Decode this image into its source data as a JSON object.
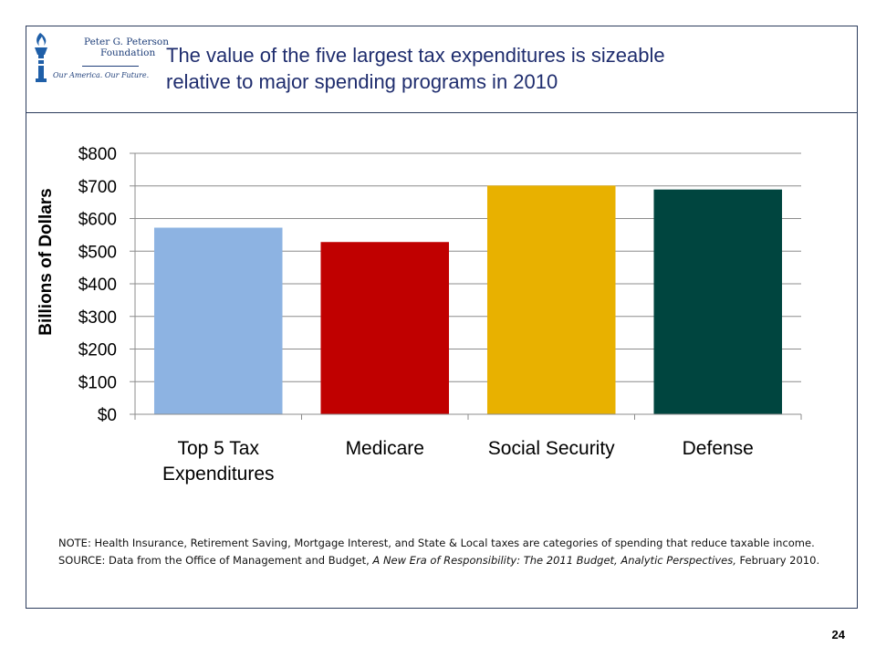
{
  "header": {
    "logo": {
      "org_line1": "Peter G. Peterson",
      "org_line2": "Foundation",
      "tagline": "Our America. Our Future."
    },
    "title_line1": "The value of the five largest tax expenditures is sizeable",
    "title_line2": "relative to major spending programs in 2010"
  },
  "chart_data": {
    "type": "bar",
    "categories": [
      "Top 5 Tax\nExpenditures",
      "Medicare",
      "Social Security",
      "Defense"
    ],
    "values": [
      572,
      528,
      701,
      689
    ],
    "colors": [
      "#8db3e2",
      "#c00000",
      "#e8b100",
      "#00453f"
    ],
    "ylabel": "Billions of Dollars",
    "ylim": [
      0,
      800
    ],
    "yticks": [
      0,
      100,
      200,
      300,
      400,
      500,
      600,
      700,
      800
    ],
    "ytick_labels": [
      "$0",
      "$100",
      "$200",
      "$300",
      "$400",
      "$500",
      "$600",
      "$700",
      "$800"
    ],
    "grid": true,
    "legend": "none"
  },
  "note": {
    "note_text": "NOTE: Health Insurance, Retirement Saving, Mortgage Interest, and State & Local taxes are categories of spending that reduce taxable income.",
    "source_prefix": "SOURCE: Data from the Office of Management and Budget, ",
    "source_title": "A New Era of Responsibility: The 2011 Budget, Analytic Perspectives,",
    "source_suffix": " February 2010."
  },
  "page_number": "24"
}
